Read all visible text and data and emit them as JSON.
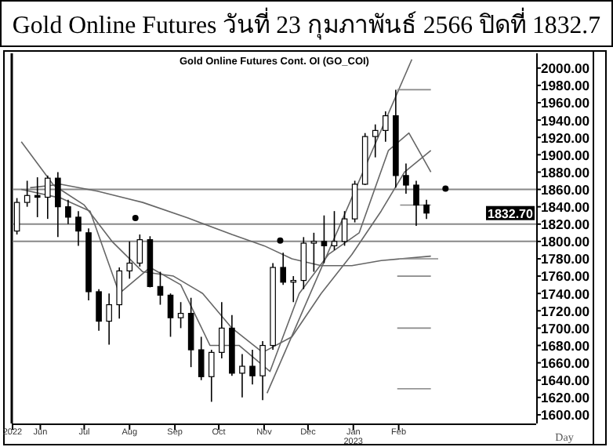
{
  "chart_data": {
    "type": "candlestick",
    "title": "Gold Online Futures วันที่ 23 กุมภาพันธ์ 2566 ปิดที่ 1832.7",
    "subtitle": "Gold Online Futures Cont. OI (GO_COI)",
    "xlabel": "Day",
    "annotations": [
      "1832.70"
    ],
    "x": [
      "2022-05-16",
      "2022-05-23",
      "2022-05-30",
      "2022-06-06",
      "2022-06-13",
      "2022-06-20",
      "2022-06-27",
      "2022-07-04",
      "2022-07-11",
      "2022-07-18",
      "2022-07-25",
      "2022-08-01",
      "2022-08-08",
      "2022-08-15",
      "2022-08-22",
      "2022-08-29",
      "2022-09-05",
      "2022-09-12",
      "2022-09-19",
      "2022-09-26",
      "2022-10-03",
      "2022-10-10",
      "2022-10-17",
      "2022-10-24",
      "2022-10-31",
      "2022-11-07",
      "2022-11-14",
      "2022-11-21",
      "2022-11-28",
      "2022-12-05",
      "2022-12-12",
      "2022-12-19",
      "2022-12-26",
      "2023-01-02",
      "2023-01-09",
      "2023-01-16",
      "2023-01-23",
      "2023-01-30",
      "2023-02-06",
      "2023-02-13",
      "2023-02-20"
    ],
    "ohlc": [
      [
        1812,
        1850,
        1808,
        1845
      ],
      [
        1845,
        1870,
        1840,
        1853
      ],
      [
        1853,
        1874,
        1828,
        1851
      ],
      [
        1851,
        1876,
        1826,
        1873
      ],
      [
        1873,
        1880,
        1805,
        1840
      ],
      [
        1840,
        1848,
        1820,
        1828
      ],
      [
        1828,
        1835,
        1795,
        1812
      ],
      [
        1810,
        1815,
        1732,
        1742
      ],
      [
        1742,
        1745,
        1697,
        1708
      ],
      [
        1708,
        1740,
        1681,
        1727
      ],
      [
        1727,
        1770,
        1711,
        1766
      ],
      [
        1766,
        1800,
        1757,
        1775
      ],
      [
        1775,
        1808,
        1771,
        1802
      ],
      [
        1802,
        1806,
        1747,
        1748
      ],
      [
        1748,
        1765,
        1727,
        1738
      ],
      [
        1738,
        1740,
        1690,
        1712
      ],
      [
        1712,
        1730,
        1700,
        1717
      ],
      [
        1717,
        1735,
        1655,
        1675
      ],
      [
        1675,
        1690,
        1640,
        1644
      ],
      [
        1644,
        1675,
        1615,
        1672
      ],
      [
        1672,
        1730,
        1665,
        1700
      ],
      [
        1700,
        1715,
        1645,
        1648
      ],
      [
        1648,
        1670,
        1620,
        1656
      ],
      [
        1656,
        1675,
        1635,
        1645
      ],
      [
        1645,
        1685,
        1617,
        1680
      ],
      [
        1680,
        1775,
        1675,
        1770
      ],
      [
        1770,
        1787,
        1750,
        1753
      ],
      [
        1753,
        1760,
        1730,
        1755
      ],
      [
        1755,
        1805,
        1745,
        1798
      ],
      [
        1798,
        1810,
        1765,
        1800
      ],
      [
        1800,
        1830,
        1775,
        1795
      ],
      [
        1795,
        1835,
        1790,
        1800
      ],
      [
        1800,
        1835,
        1795,
        1826
      ],
      [
        1826,
        1870,
        1822,
        1866
      ],
      [
        1866,
        1925,
        1865,
        1921
      ],
      [
        1921,
        1935,
        1897,
        1928
      ],
      [
        1928,
        1950,
        1915,
        1945
      ],
      [
        1945,
        1975,
        1862,
        1876
      ],
      [
        1876,
        1890,
        1855,
        1865
      ],
      [
        1865,
        1870,
        1818,
        1842
      ],
      [
        1842,
        1848,
        1826,
        1832.7
      ]
    ],
    "color": "#000000",
    "series": [
      {
        "type": "line",
        "color": "#666666",
        "x": [
          "2022-05-25",
          "2022-06-15",
          "2022-07-10",
          "2022-08-10",
          "2022-09-10",
          "2022-10-10",
          "2022-11-01",
          "2022-11-20",
          "2022-12-10",
          "2022-12-31",
          "2023-01-20",
          "2023-02-23"
        ],
        "values": [
          1862,
          1866,
          1858,
          1845,
          1827,
          1808,
          1795,
          1780,
          1772,
          1772,
          1778,
          1783
        ]
      },
      {
        "type": "line",
        "color": "#666666",
        "x": [
          "2022-05-19",
          "2022-06-10",
          "2022-07-01",
          "2022-07-20",
          "2022-08-10",
          "2022-08-31",
          "2022-09-20",
          "2022-10-10",
          "2022-10-31",
          "2022-11-20",
          "2022-12-10",
          "2022-12-31",
          "2023-01-20",
          "2023-02-05",
          "2023-02-23"
        ],
        "values": [
          1915,
          1865,
          1842,
          1800,
          1765,
          1760,
          1740,
          1700,
          1672,
          1690,
          1740,
          1785,
          1835,
          1880,
          1905
        ]
      },
      {
        "type": "line",
        "color": "#666666",
        "x": [
          "2022-05-19",
          "2022-06-15",
          "2022-07-05",
          "2022-07-25",
          "2022-08-15",
          "2022-09-05",
          "2022-09-25",
          "2022-10-15",
          "2022-11-05",
          "2022-11-25",
          "2022-12-15",
          "2023-01-05",
          "2023-01-25",
          "2023-02-08",
          "2023-02-23"
        ],
        "values": [
          1860,
          1850,
          1835,
          1740,
          1770,
          1750,
          1680,
          1680,
          1650,
          1740,
          1785,
          1810,
          1905,
          1925,
          1880
        ]
      },
      {
        "type": "line",
        "color": "#666666",
        "x": [
          "2022-11-03",
          "2023-02-10"
        ],
        "values": [
          1625,
          2010
        ]
      },
      {
        "type": "line",
        "color": "#888888",
        "x": [
          "2023-01-31",
          "2023-02-23"
        ],
        "values": [
          1975,
          1975
        ]
      },
      {
        "type": "line",
        "color": "#888888",
        "x": [
          "2023-02-02",
          "2023-02-23"
        ],
        "values": [
          1842,
          1842
        ]
      },
      {
        "type": "line",
        "color": "#888888",
        "x": [
          "2023-02-02",
          "2023-02-28"
        ],
        "values": [
          1780,
          1780
        ]
      },
      {
        "type": "line",
        "color": "#888888",
        "x": [
          "2023-01-31",
          "2023-02-23"
        ],
        "values": [
          1760,
          1760
        ]
      },
      {
        "type": "line",
        "color": "#888888",
        "x": [
          "2023-01-31",
          "2023-02-23"
        ],
        "values": [
          1700,
          1700
        ]
      },
      {
        "type": "line",
        "color": "#888888",
        "x": [
          "2023-01-31",
          "2023-02-23"
        ],
        "values": [
          1630,
          1630
        ]
      },
      {
        "type": "scatter",
        "color": "#000000",
        "x": [
          "2022-08-05",
          "2022-11-12",
          "2023-03-05"
        ],
        "values": [
          1827,
          1801,
          1861
        ]
      }
    ],
    "ref_lines": [
      {
        "axis": "y",
        "value": 1860,
        "color": "#888888"
      },
      {
        "axis": "y",
        "value": 1820,
        "color": "#888888"
      },
      {
        "axis": "y",
        "value": 1800,
        "color": "#888888"
      }
    ],
    "xlim": [
      "2022-05-13",
      "2023-05-06"
    ],
    "xticks": [
      {
        "value": "2022-05-13",
        "label": "2022"
      },
      {
        "value": "2022-06-01",
        "label": "Jun"
      },
      {
        "value": "2022-07-01",
        "label": "Jul"
      },
      {
        "value": "2022-08-01",
        "label": "Aug"
      },
      {
        "value": "2022-09-01",
        "label": "Sep"
      },
      {
        "value": "2022-10-01",
        "label": "Oct"
      },
      {
        "value": "2022-11-01",
        "label": "Nov"
      },
      {
        "value": "2022-12-01",
        "label": "Dec"
      },
      {
        "value": "2023-01-01",
        "label": "Jan 2023"
      },
      {
        "value": "2023-02-01",
        "label": "Feb"
      }
    ],
    "ylim": [
      1590,
      2017
    ],
    "yticks": [
      {
        "value": 1600,
        "label": "1600.00"
      },
      {
        "value": 1620,
        "label": "1620.00"
      },
      {
        "value": 1640,
        "label": "1640.00"
      },
      {
        "value": 1660,
        "label": "1660.00"
      },
      {
        "value": 1680,
        "label": "1680.00"
      },
      {
        "value": 1700,
        "label": "1700.00"
      },
      {
        "value": 1720,
        "label": "1720.00"
      },
      {
        "value": 1740,
        "label": "1740.00"
      },
      {
        "value": 1760,
        "label": "1760.00"
      },
      {
        "value": 1780,
        "label": "1780.00"
      },
      {
        "value": 1800,
        "label": "1800.00"
      },
      {
        "value": 1820,
        "label": "1820.00"
      },
      {
        "value": 1840,
        "label": "1840.00"
      },
      {
        "value": 1860,
        "label": "1860.00"
      },
      {
        "value": 1880,
        "label": "1880.00"
      },
      {
        "value": 1900,
        "label": "1900.00"
      },
      {
        "value": 1920,
        "label": "1920.00"
      },
      {
        "value": 1940,
        "label": "1940.00"
      },
      {
        "value": 1960,
        "label": "1960.00"
      },
      {
        "value": 1980,
        "label": "1980.00"
      },
      {
        "value": 2000,
        "label": "2000.00"
      }
    ],
    "grid": false
  }
}
